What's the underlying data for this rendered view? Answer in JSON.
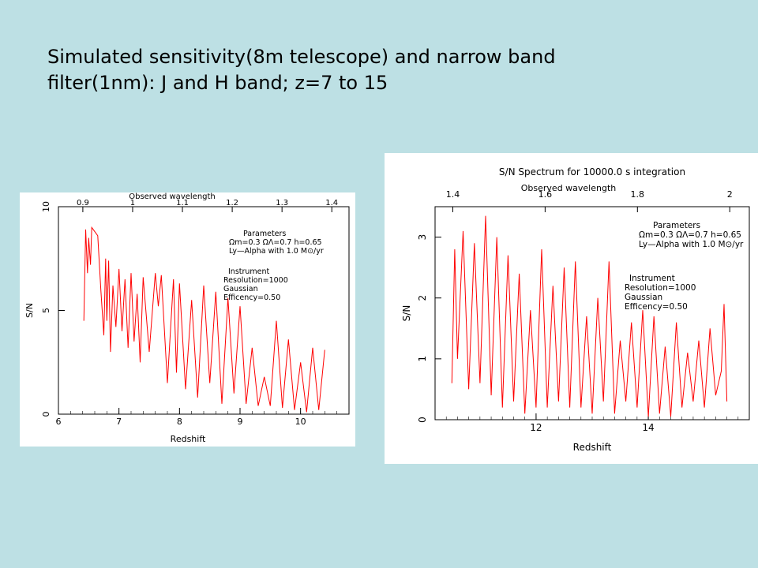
{
  "slide": {
    "title_line1": "Simulated sensitivity(8m telescope) and narrow band",
    "title_line2": "filter(1nm): J and H band; z=7 to 15"
  },
  "colors": {
    "background": "#bde0e4",
    "curve": "#ff0000",
    "panel": "#ffffff"
  },
  "chart_data": [
    {
      "type": "line",
      "title": "",
      "xlabel": "Redshift",
      "ylabel": "S/N",
      "top_axis_label": "Observed wavelength",
      "xlim": [
        6,
        10.8
      ],
      "ylim": [
        0,
        10
      ],
      "x_ticks": [
        6,
        7,
        8,
        9,
        10
      ],
      "y_ticks": [
        0,
        5,
        10
      ],
      "top_ticks": [
        0.9,
        1,
        1.1,
        1.2,
        1.3,
        1.4
      ],
      "grid": false,
      "legend": "none",
      "parameters_text": [
        "Parameters",
        "Ωm=0.3 ΩΛ=0.7 h=0.65",
        "Ly—Alpha with 1.0 M⊙/yr"
      ],
      "instrument_text": [
        "Instrument",
        "Resolution=1000",
        "Gaussian",
        "Efficency=0.50"
      ],
      "series": [
        {
          "x": [
            6.42,
            6.45,
            6.48,
            6.5,
            6.53,
            6.55,
            6.6,
            6.65,
            6.7,
            6.75,
            6.78,
            6.8,
            6.83,
            6.86,
            6.9,
            6.95,
            7.0,
            7.05,
            7.1,
            7.15,
            7.2,
            7.25,
            7.3,
            7.35,
            7.4,
            7.5,
            7.6,
            7.65,
            7.7,
            7.8,
            7.9,
            7.95,
            8.0,
            8.1,
            8.2,
            8.3,
            8.4,
            8.5,
            8.6,
            8.7,
            8.8,
            8.9,
            9.0,
            9.1,
            9.2,
            9.3,
            9.4,
            9.5,
            9.6,
            9.7,
            9.8,
            9.9,
            10.0,
            10.1,
            10.2,
            10.3,
            10.4
          ],
          "y": [
            4.5,
            8.9,
            6.8,
            8.5,
            7.2,
            9.0,
            8.8,
            8.6,
            6.0,
            3.8,
            7.5,
            4.5,
            7.4,
            3.0,
            6.2,
            4.2,
            7.0,
            4.0,
            6.5,
            3.2,
            6.8,
            3.5,
            5.8,
            2.5,
            6.6,
            3.0,
            6.8,
            5.2,
            6.7,
            1.5,
            6.5,
            2.0,
            6.3,
            1.2,
            5.5,
            0.8,
            6.2,
            1.5,
            5.9,
            0.5,
            5.6,
            1.0,
            5.2,
            0.5,
            3.2,
            0.4,
            1.8,
            0.4,
            4.5,
            0.3,
            3.6,
            0.2,
            2.5,
            0.1,
            3.2,
            0.2,
            3.1
          ]
        }
      ]
    },
    {
      "type": "line",
      "title": "S/N Spectrum for 10000.0 s integration",
      "xlabel": "Redshift",
      "ylabel": "S/N",
      "top_axis_label": "Observed wavelength",
      "xlim": [
        10.2,
        15.8
      ],
      "ylim": [
        0,
        3.5
      ],
      "x_ticks": [
        12,
        14
      ],
      "y_ticks": [
        0,
        1,
        2,
        3
      ],
      "top_ticks": [
        1.4,
        1.6,
        1.8,
        2
      ],
      "grid": false,
      "legend": "none",
      "parameters_text": [
        "Parameters",
        "Ωm=0.3 ΩΛ=0.7 h=0.65",
        "Ly—Alpha with 1.0 M⊙/yr"
      ],
      "instrument_text": [
        "Instrument",
        "Resolution=1000",
        "Gaussian",
        "Efficency=0.50"
      ],
      "series": [
        {
          "x": [
            10.5,
            10.55,
            10.6,
            10.7,
            10.8,
            10.9,
            11.0,
            11.1,
            11.2,
            11.3,
            11.4,
            11.5,
            11.6,
            11.7,
            11.8,
            11.9,
            12.0,
            12.1,
            12.2,
            12.3,
            12.4,
            12.5,
            12.6,
            12.7,
            12.8,
            12.9,
            13.0,
            13.1,
            13.2,
            13.3,
            13.4,
            13.5,
            13.6,
            13.7,
            13.8,
            13.9,
            14.0,
            14.1,
            14.2,
            14.3,
            14.4,
            14.5,
            14.6,
            14.7,
            14.8,
            14.9,
            15.0,
            15.1,
            15.2,
            15.3,
            15.35,
            15.4
          ],
          "y": [
            0.6,
            2.8,
            1.0,
            3.1,
            0.5,
            2.9,
            0.6,
            3.35,
            0.4,
            3.0,
            0.2,
            2.7,
            0.3,
            2.4,
            0.1,
            1.8,
            0.2,
            2.8,
            0.2,
            2.2,
            0.3,
            2.5,
            0.2,
            2.6,
            0.2,
            1.7,
            0.1,
            2.0,
            0.3,
            2.6,
            0.1,
            1.3,
            0.3,
            1.6,
            0.2,
            1.8,
            0.05,
            1.7,
            0.1,
            1.2,
            0.05,
            1.6,
            0.2,
            1.1,
            0.3,
            1.3,
            0.2,
            1.5,
            0.4,
            0.8,
            1.9,
            0.3
          ]
        }
      ]
    }
  ]
}
